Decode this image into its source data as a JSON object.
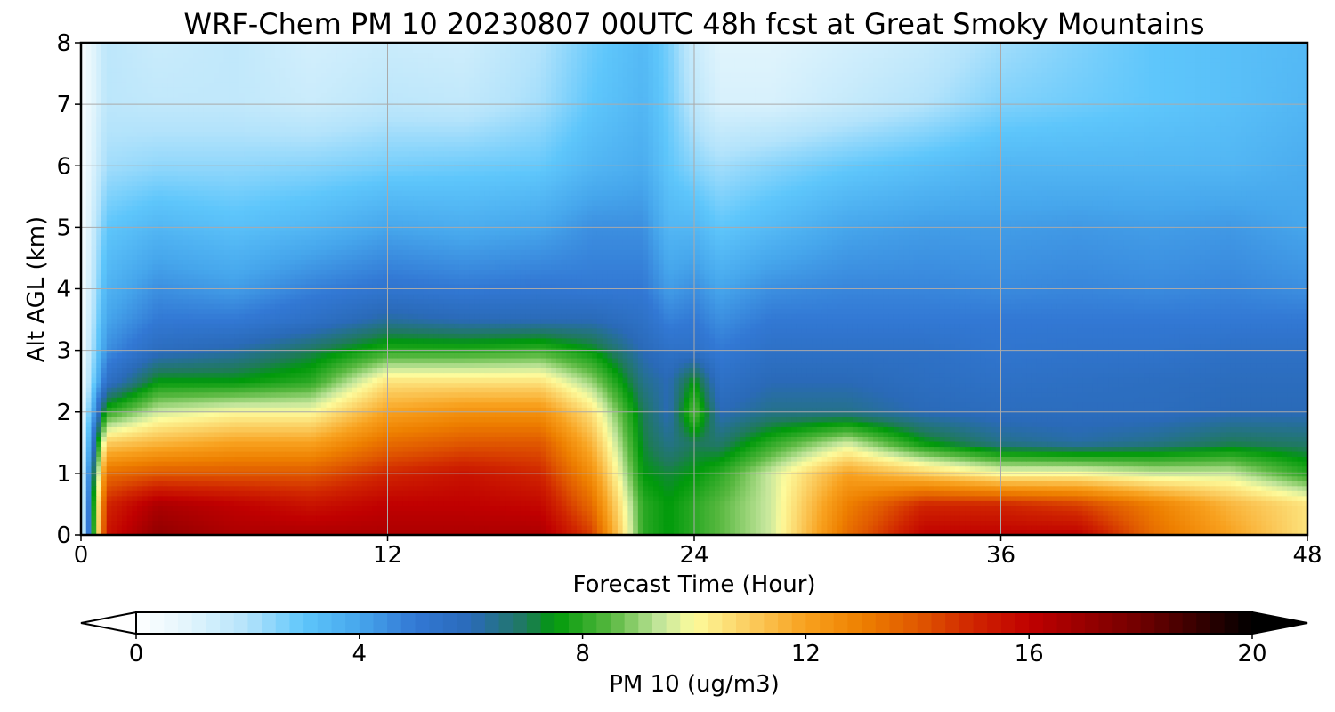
{
  "chart_data": {
    "type": "heatmap",
    "title": "WRF-Chem PM 10  20230807 00UTC 48h fcst at Great Smoky Mountains",
    "xlabel": "Forecast Time (Hour)",
    "ylabel": "Alt AGL (km)",
    "xlim": [
      0,
      48
    ],
    "ylim": [
      0,
      8
    ],
    "x_ticks": [
      0,
      12,
      24,
      36,
      48
    ],
    "y_ticks": [
      0,
      1,
      2,
      3,
      4,
      5,
      6,
      7,
      8
    ],
    "grid": true,
    "colorbar": {
      "label": "PM 10  (ug/m3)",
      "range": [
        0,
        20
      ],
      "ticks": [
        0,
        4,
        8,
        12,
        16,
        20
      ],
      "extend": "both",
      "orientation": "horizontal",
      "placement": "bottom",
      "colormap_stops": [
        {
          "v": 0,
          "c": "#ffffff"
        },
        {
          "v": 1,
          "c": "#e0f4fc"
        },
        {
          "v": 2,
          "c": "#b3e3fb"
        },
        {
          "v": 3,
          "c": "#5ec6fb"
        },
        {
          "v": 4,
          "c": "#46a6ec"
        },
        {
          "v": 5,
          "c": "#3278d4"
        },
        {
          "v": 6,
          "c": "#2a6ab8"
        },
        {
          "v": 7,
          "c": "#1f7a5a"
        },
        {
          "v": 7.5,
          "c": "#009a0a"
        },
        {
          "v": 8.5,
          "c": "#58b840"
        },
        {
          "v": 9.4,
          "c": "#c4e69c"
        },
        {
          "v": 10,
          "c": "#fdfb9c"
        },
        {
          "v": 11,
          "c": "#fbcc5e"
        },
        {
          "v": 12,
          "c": "#f8a11e"
        },
        {
          "v": 13,
          "c": "#ee8000"
        },
        {
          "v": 14,
          "c": "#e05800"
        },
        {
          "v": 15,
          "c": "#d02500"
        },
        {
          "v": 16,
          "c": "#c00000"
        },
        {
          "v": 18,
          "c": "#700000"
        },
        {
          "v": 20,
          "c": "#000000"
        }
      ]
    },
    "times": [
      0,
      1,
      3,
      6,
      9,
      12,
      15,
      18,
      20,
      22,
      23,
      24,
      25,
      27,
      30,
      33,
      36,
      39,
      42,
      45,
      48
    ],
    "altitudes": [
      0,
      0.5,
      1,
      1.5,
      2,
      2.5,
      3,
      3.5,
      4,
      5,
      6,
      7,
      8
    ],
    "values": [
      [
        0.5,
        15.5,
        17.2,
        16.5,
        16.5,
        16.5,
        16.5,
        16.5,
        14.5,
        8,
        7.5,
        8,
        8.5,
        9.5,
        13.5,
        16,
        16,
        16,
        13.5,
        12,
        10.5
      ],
      [
        0.5,
        15,
        16.5,
        16,
        15.5,
        16,
        16,
        15.8,
        13.5,
        8,
        7.5,
        8,
        8.5,
        9.5,
        13,
        15,
        15,
        14.5,
        13,
        11.5,
        10.5
      ],
      [
        0.5,
        13.5,
        14,
        14,
        14,
        15,
        15.5,
        15,
        12.5,
        7.5,
        7.2,
        7.5,
        8,
        9.5,
        12,
        11,
        10,
        10,
        9.5,
        9.5,
        8
      ],
      [
        0.3,
        11,
        11.5,
        12,
        12,
        13.5,
        14,
        14,
        11.5,
        7.2,
        6.5,
        7,
        6.8,
        8,
        9.5,
        7.5,
        6.5,
        6.2,
        6.5,
        7,
        6.8
      ],
      [
        0.3,
        8,
        9.5,
        10,
        10,
        12,
        12.5,
        12.5,
        10.5,
        7,
        6,
        8.5,
        6,
        6.5,
        6.5,
        6,
        5.8,
        5.8,
        5.8,
        6,
        6
      ],
      [
        0.2,
        5.5,
        7.5,
        7.5,
        8,
        10.5,
        10.5,
        10.5,
        9,
        6.5,
        6,
        7.5,
        5.5,
        6,
        6,
        5.7,
        5.5,
        5.6,
        5.7,
        5.8,
        5.8
      ],
      [
        0.2,
        4.5,
        5.8,
        6.2,
        7,
        8,
        8,
        8.2,
        7.5,
        6,
        5.5,
        5.5,
        5,
        5.5,
        5.5,
        5.5,
        5.2,
        5.3,
        5.3,
        5.5,
        5.5
      ],
      [
        0.2,
        4,
        5,
        5,
        5.5,
        6.3,
        6,
        6,
        6,
        5.5,
        4.8,
        5,
        4.5,
        5,
        5,
        5,
        5,
        5,
        5,
        5,
        5
      ],
      [
        0.2,
        3.6,
        4.5,
        4.2,
        4.8,
        5.2,
        5,
        5.1,
        5,
        5,
        4.2,
        4.5,
        4,
        4.5,
        4.7,
        4.7,
        4.6,
        4.7,
        4.6,
        4.7,
        4.5
      ],
      [
        0.2,
        3,
        3.5,
        3.2,
        3.5,
        4,
        3.8,
        4,
        4.5,
        4.5,
        3.5,
        3.5,
        3,
        3.4,
        4,
        4.2,
        4.2,
        4.3,
        4.2,
        4.3,
        4
      ],
      [
        0.2,
        2.2,
        2.4,
        2.4,
        2.5,
        2.7,
        2.8,
        2.9,
        3.5,
        3.8,
        3,
        2.5,
        2.2,
        2.5,
        2.9,
        3.2,
        3.5,
        3.5,
        3.5,
        3.5,
        3.8
      ],
      [
        0.2,
        1.8,
        1.7,
        1.7,
        1.5,
        1.8,
        1.7,
        2.2,
        3,
        3.5,
        2.8,
        1.8,
        1.2,
        1.2,
        1.6,
        2,
        2.6,
        2.8,
        3,
        3.2,
        3.5
      ],
      [
        0.2,
        1.8,
        1.5,
        1.7,
        1.3,
        1.5,
        1.4,
        2,
        2.8,
        3.4,
        2.7,
        1.5,
        1,
        1,
        1.3,
        1.6,
        2.2,
        2.6,
        3,
        3.2,
        3.4
      ]
    ]
  }
}
